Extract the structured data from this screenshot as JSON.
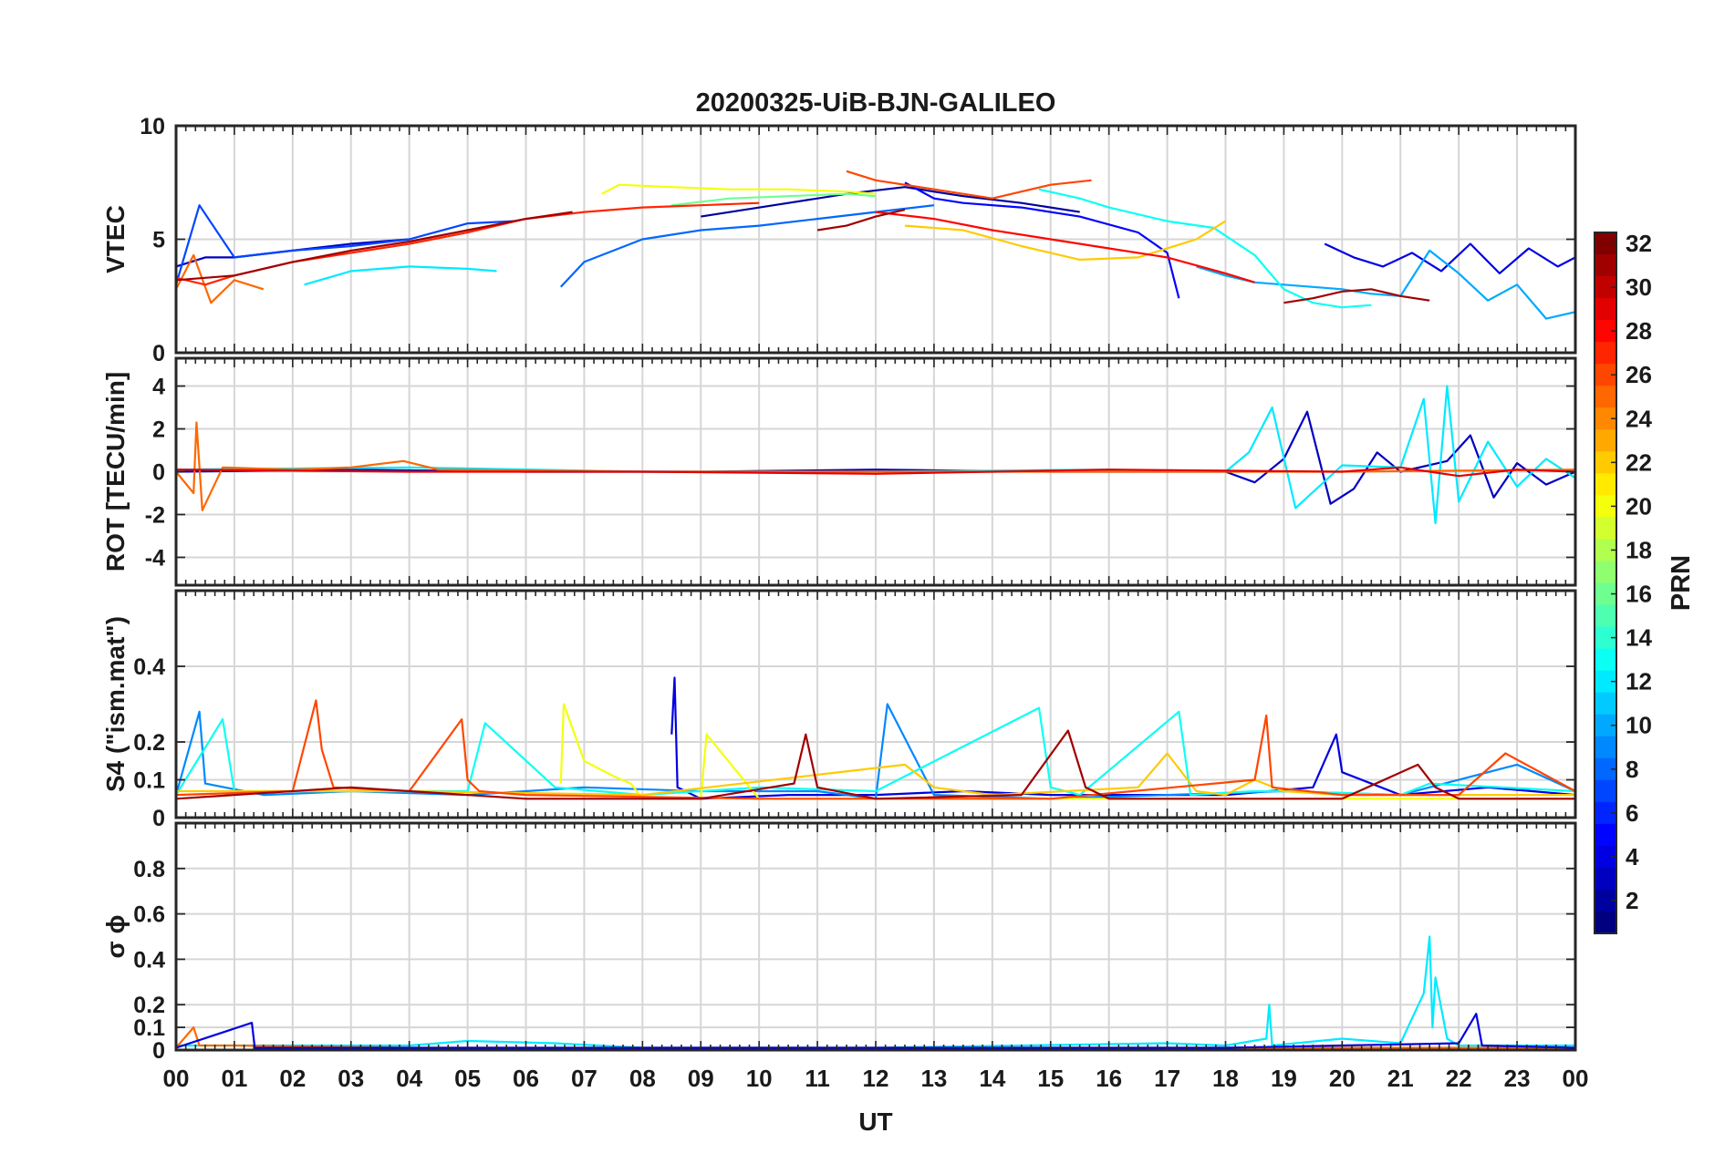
{
  "title": "20200325-UiB-BJN-GALILEO",
  "x_axis": {
    "label": "UT",
    "ticks": [
      "00",
      "01",
      "02",
      "03",
      "04",
      "05",
      "06",
      "07",
      "08",
      "09",
      "10",
      "11",
      "12",
      "13",
      "14",
      "15",
      "16",
      "17",
      "18",
      "19",
      "20",
      "21",
      "22",
      "23",
      "00"
    ]
  },
  "colorbar": {
    "label": "PRN",
    "range": [
      1,
      32
    ],
    "ticks": [
      "2",
      "4",
      "6",
      "8",
      "10",
      "12",
      "14",
      "16",
      "18",
      "20",
      "22",
      "24",
      "26",
      "28",
      "30",
      "32"
    ],
    "colormap": "jet"
  },
  "chart_data": [
    {
      "type": "line",
      "panel": "vtec",
      "ylabel": "VTEC",
      "ylim": [
        0,
        10
      ],
      "yticks": [
        "0",
        "5",
        "10"
      ],
      "grid": true,
      "x_units": "UT hours",
      "series": [
        {
          "prn": 2,
          "x": [
            9.0,
            10.5,
            11.5,
            12.5,
            13.5,
            14.5,
            15.5
          ],
          "y": [
            6.0,
            6.6,
            7.0,
            7.3,
            6.9,
            6.6,
            6.2
          ]
        },
        {
          "prn": 3,
          "x": [
            0.0,
            0.5,
            1.0,
            2.0,
            3.0,
            4.0
          ],
          "y": [
            3.8,
            4.2,
            4.2,
            4.5,
            4.8,
            5.0
          ]
        },
        {
          "prn": 4,
          "x": [
            19.7,
            20.2,
            20.7,
            21.2,
            21.7,
            22.2,
            22.7,
            23.2,
            23.7,
            24.0
          ],
          "y": [
            4.8,
            4.2,
            3.8,
            4.4,
            3.6,
            4.8,
            3.5,
            4.6,
            3.8,
            4.2
          ]
        },
        {
          "prn": 5,
          "x": [
            12.5,
            13.0,
            13.5,
            14.5,
            15.5,
            16.5,
            17.0,
            17.2
          ],
          "y": [
            7.5,
            6.8,
            6.6,
            6.4,
            6.0,
            5.3,
            4.4,
            2.4
          ]
        },
        {
          "prn": 7,
          "x": [
            0.0,
            0.4,
            1.0,
            2.0,
            3.0,
            4.0,
            5.0,
            5.8
          ],
          "y": [
            3.0,
            6.5,
            4.2,
            4.5,
            4.7,
            5.0,
            5.7,
            5.8
          ]
        },
        {
          "prn": 8,
          "x": [
            6.6,
            7.0,
            8.0,
            9.0,
            10.0,
            11.0,
            12.0,
            13.0
          ],
          "y": [
            2.9,
            4.0,
            5.0,
            5.4,
            5.6,
            5.9,
            6.2,
            6.5
          ]
        },
        {
          "prn": 10,
          "x": [
            17.5,
            18.0,
            18.5,
            19.0,
            19.5,
            20.0,
            20.5,
            21.0,
            21.5,
            22.0,
            22.5,
            23.0,
            23.5,
            24.0
          ],
          "y": [
            3.8,
            3.4,
            3.1,
            3.0,
            2.9,
            2.8,
            2.6,
            2.5,
            4.5,
            3.5,
            2.3,
            3.0,
            1.5,
            1.8
          ]
        },
        {
          "prn": 12,
          "x": [
            2.2,
            3.0,
            4.0,
            5.0,
            5.5
          ],
          "y": [
            3.0,
            3.6,
            3.8,
            3.7,
            3.6
          ]
        },
        {
          "prn": 13,
          "x": [
            14.8,
            15.5,
            16.0,
            17.0,
            17.8,
            18.5,
            19.0,
            19.5,
            20.0,
            20.5
          ],
          "y": [
            7.2,
            6.8,
            6.4,
            5.8,
            5.5,
            4.3,
            2.8,
            2.2,
            2.0,
            2.1
          ]
        },
        {
          "prn": 16,
          "x": [
            8.5,
            9.5,
            10.5,
            11.5,
            12.0
          ],
          "y": [
            6.5,
            6.8,
            6.9,
            7.0,
            6.9
          ]
        },
        {
          "prn": 20,
          "x": [
            7.3,
            7.6,
            8.5,
            9.5,
            10.5,
            11.5,
            12.0
          ],
          "y": [
            7.0,
            7.4,
            7.3,
            7.2,
            7.2,
            7.1,
            7.0
          ]
        },
        {
          "prn": 22,
          "x": [
            12.5,
            13.5,
            14.5,
            15.5,
            16.5,
            17.5,
            18.0
          ],
          "y": [
            5.6,
            5.4,
            4.7,
            4.1,
            4.2,
            5.0,
            5.8
          ]
        },
        {
          "prn": 25,
          "x": [
            0.0,
            0.3,
            0.6,
            1.0,
            1.5
          ],
          "y": [
            2.8,
            4.3,
            2.2,
            3.2,
            2.8
          ]
        },
        {
          "prn": 26,
          "x": [
            11.5,
            12.0,
            13.0,
            14.0,
            15.0,
            15.7
          ],
          "y": [
            8.0,
            7.6,
            7.2,
            6.8,
            7.4,
            7.6
          ]
        },
        {
          "prn": 27,
          "x": [
            0.0,
            0.5,
            1.0,
            2.0,
            3.0,
            4.0,
            5.0,
            6.0,
            7.0,
            8.0,
            9.0,
            10.0
          ],
          "y": [
            3.3,
            3.0,
            3.4,
            4.0,
            4.4,
            4.8,
            5.3,
            5.9,
            6.2,
            6.4,
            6.5,
            6.6
          ]
        },
        {
          "prn": 28,
          "x": [
            12.0,
            13.0,
            14.0,
            15.0,
            16.0,
            17.0,
            18.0,
            18.5
          ],
          "y": [
            6.2,
            5.9,
            5.4,
            5.0,
            4.6,
            4.2,
            3.5,
            3.1
          ]
        },
        {
          "prn": 31,
          "x": [
            0.0,
            1.0,
            2.0,
            3.0,
            4.0,
            5.0,
            6.0,
            6.8
          ],
          "y": [
            3.2,
            3.4,
            4.0,
            4.5,
            4.9,
            5.4,
            5.9,
            6.2
          ]
        },
        {
          "prn": 31,
          "x": [
            11.0,
            11.5,
            12.0,
            12.5
          ],
          "y": [
            5.4,
            5.6,
            6.0,
            6.3
          ]
        },
        {
          "prn": 31,
          "x": [
            19.0,
            19.5,
            20.0,
            20.5,
            21.0,
            21.5
          ],
          "y": [
            2.2,
            2.4,
            2.7,
            2.8,
            2.5,
            2.3
          ]
        }
      ]
    },
    {
      "type": "line",
      "panel": "rot",
      "ylabel": "ROT [TECU/min]",
      "ylim": [
        -5.3,
        5.3
      ],
      "yticks": [
        "-4",
        "-2",
        "0",
        "2",
        "4"
      ],
      "grid": true,
      "x_units": "UT hours",
      "series": [
        {
          "prn": 3,
          "x": [
            0.0,
            3.0,
            6.0,
            9.0,
            12.0,
            15.0,
            18.0,
            18.5,
            19.0,
            19.4,
            19.8,
            20.2,
            20.6,
            21.0,
            21.8,
            22.2,
            22.6,
            23.0,
            23.5,
            24.0
          ],
          "y": [
            0.0,
            0.1,
            0.0,
            0.0,
            0.1,
            0.0,
            0.0,
            -0.5,
            0.6,
            2.8,
            -1.5,
            -0.8,
            0.9,
            0.0,
            0.5,
            1.7,
            -1.2,
            0.4,
            -0.6,
            0.0
          ]
        },
        {
          "prn": 12,
          "x": [
            0.0,
            4.0,
            8.0,
            12.0,
            16.0,
            18.0,
            18.4,
            18.8,
            19.2,
            20.0,
            21.0,
            21.4,
            21.6,
            21.8,
            22.0,
            22.5,
            23.0,
            23.5,
            24.0
          ],
          "y": [
            0.1,
            0.2,
            0.0,
            0.0,
            0.1,
            0.0,
            0.9,
            3.0,
            -1.7,
            0.3,
            0.2,
            3.4,
            -2.4,
            4.0,
            -1.4,
            1.4,
            -0.7,
            0.6,
            -0.3
          ]
        },
        {
          "prn": 25,
          "x": [
            0.0,
            0.3,
            0.35,
            0.45,
            0.8,
            2.0,
            3.0,
            3.9,
            4.5,
            8.0,
            12.0,
            16.0,
            20.0,
            24.0
          ],
          "y": [
            0.0,
            -1.0,
            2.3,
            -1.8,
            0.2,
            0.1,
            0.2,
            0.5,
            0.1,
            0.0,
            0.0,
            0.0,
            0.0,
            0.1
          ]
        },
        {
          "prn": 29,
          "x": [
            0.0,
            4.0,
            8.0,
            12.0,
            16.0,
            20.0,
            21.0,
            22.0,
            23.0,
            24.0
          ],
          "y": [
            0.1,
            0.0,
            0.0,
            -0.1,
            0.1,
            0.0,
            0.2,
            -0.2,
            0.1,
            0.0
          ]
        }
      ]
    },
    {
      "type": "line",
      "panel": "s4",
      "ylabel": "S4 (\"ism.mat\")",
      "ylim": [
        0,
        0.6
      ],
      "yticks": [
        "0",
        "0.1",
        "0.2",
        "0.4"
      ],
      "grid": true,
      "x_units": "UT hours",
      "series": [
        {
          "prn": 4,
          "x": [
            8.5,
            8.55,
            8.6,
            9.0,
            10.5,
            12.0,
            13.5,
            15.0,
            16.5,
            18.0,
            19.5,
            19.9,
            20.0,
            21.0,
            22.5,
            24.0
          ],
          "y": [
            0.22,
            0.37,
            0.08,
            0.05,
            0.06,
            0.06,
            0.07,
            0.06,
            0.06,
            0.06,
            0.08,
            0.22,
            0.12,
            0.06,
            0.08,
            0.06
          ]
        },
        {
          "prn": 9,
          "x": [
            0.0,
            0.4,
            0.5,
            1.5,
            3.0,
            5.0,
            7.0,
            9.0,
            11.0,
            12.0,
            12.2,
            13.0,
            15.0,
            17.0,
            19.0,
            21.0,
            23.0,
            24.0
          ],
          "y": [
            0.06,
            0.28,
            0.09,
            0.06,
            0.07,
            0.06,
            0.08,
            0.07,
            0.07,
            0.05,
            0.3,
            0.06,
            0.05,
            0.06,
            0.07,
            0.06,
            0.14,
            0.07
          ]
        },
        {
          "prn": 13,
          "x": [
            0.0,
            0.8,
            1.0,
            3.0,
            5.0,
            5.3,
            6.5,
            8.0,
            10.0,
            12.0,
            14.8,
            15.0,
            15.5,
            17.2,
            17.4,
            18.5,
            19.0,
            21.0,
            21.5,
            24.0
          ],
          "y": [
            0.06,
            0.26,
            0.07,
            0.07,
            0.07,
            0.25,
            0.08,
            0.06,
            0.08,
            0.07,
            0.29,
            0.08,
            0.06,
            0.28,
            0.06,
            0.07,
            0.07,
            0.06,
            0.09,
            0.07
          ]
        },
        {
          "prn": 20,
          "x": [
            6.6,
            6.65,
            7.0,
            7.5,
            7.8,
            8.0,
            9.0,
            9.1,
            10.0,
            15.0,
            20.0,
            24.0
          ],
          "y": [
            0.09,
            0.3,
            0.15,
            0.11,
            0.09,
            0.05,
            0.05,
            0.22,
            0.05,
            0.05,
            0.05,
            0.05
          ]
        },
        {
          "prn": 22,
          "x": [
            0.0,
            4.0,
            8.0,
            12.5,
            13.0,
            14.0,
            16.5,
            17.0,
            17.5,
            18.0,
            18.5,
            19.0,
            20.0,
            22.0,
            24.0
          ],
          "y": [
            0.07,
            0.07,
            0.06,
            0.14,
            0.08,
            0.06,
            0.08,
            0.17,
            0.07,
            0.06,
            0.1,
            0.07,
            0.06,
            0.06,
            0.06
          ]
        },
        {
          "prn": 26,
          "x": [
            0.0,
            2.0,
            2.4,
            2.5,
            2.7,
            4.0,
            4.9,
            5.0,
            5.2,
            6.0,
            10.0,
            15.0,
            18.5,
            18.7,
            18.8,
            20.0,
            22.0,
            22.8,
            24.0
          ],
          "y": [
            0.06,
            0.07,
            0.31,
            0.18,
            0.08,
            0.07,
            0.26,
            0.1,
            0.07,
            0.06,
            0.05,
            0.05,
            0.1,
            0.27,
            0.08,
            0.06,
            0.06,
            0.17,
            0.07
          ]
        },
        {
          "prn": 31,
          "x": [
            0.0,
            3.0,
            6.0,
            9.0,
            10.6,
            10.8,
            11.0,
            12.0,
            14.5,
            15.3,
            15.6,
            16.0,
            20.0,
            21.3,
            21.6,
            22.0,
            24.0
          ],
          "y": [
            0.05,
            0.08,
            0.05,
            0.05,
            0.09,
            0.22,
            0.08,
            0.05,
            0.06,
            0.23,
            0.08,
            0.05,
            0.05,
            0.14,
            0.08,
            0.05,
            0.05
          ]
        }
      ]
    },
    {
      "type": "line",
      "panel": "sigma_phi",
      "ylabel": "σ ϕ",
      "ylim": [
        0,
        1.0
      ],
      "yticks": [
        "0",
        "0.1",
        "0.2",
        "0.4",
        "0.6",
        "0.8"
      ],
      "grid": true,
      "x_units": "UT hours",
      "series": [
        {
          "prn": 12,
          "x": [
            0.0,
            4.0,
            5.0,
            6.5,
            8.0,
            12.0,
            17.0,
            18.0,
            18.7,
            18.75,
            18.8,
            20.0,
            21.0,
            21.4,
            21.5,
            21.55,
            21.6,
            21.8,
            22.0,
            24.0
          ],
          "y": [
            0.02,
            0.02,
            0.04,
            0.03,
            0.01,
            0.01,
            0.03,
            0.02,
            0.05,
            0.2,
            0.02,
            0.05,
            0.03,
            0.25,
            0.5,
            0.1,
            0.32,
            0.05,
            0.02,
            0.02
          ]
        },
        {
          "prn": 25,
          "x": [
            0.0,
            0.3,
            0.4,
            1.0,
            4.0,
            8.0,
            12.0,
            16.0,
            20.0,
            24.0
          ],
          "y": [
            0.01,
            0.1,
            0.02,
            0.02,
            0.01,
            0.01,
            0.01,
            0.01,
            0.01,
            0.01
          ]
        },
        {
          "prn": 4,
          "x": [
            0.0,
            1.3,
            1.35,
            1.5,
            6.0,
            12.0,
            18.0,
            20.0,
            22.0,
            22.3,
            22.4,
            24.0
          ],
          "y": [
            0.01,
            0.12,
            0.01,
            0.01,
            0.01,
            0.01,
            0.01,
            0.02,
            0.03,
            0.16,
            0.02,
            0.01
          ]
        }
      ]
    }
  ]
}
